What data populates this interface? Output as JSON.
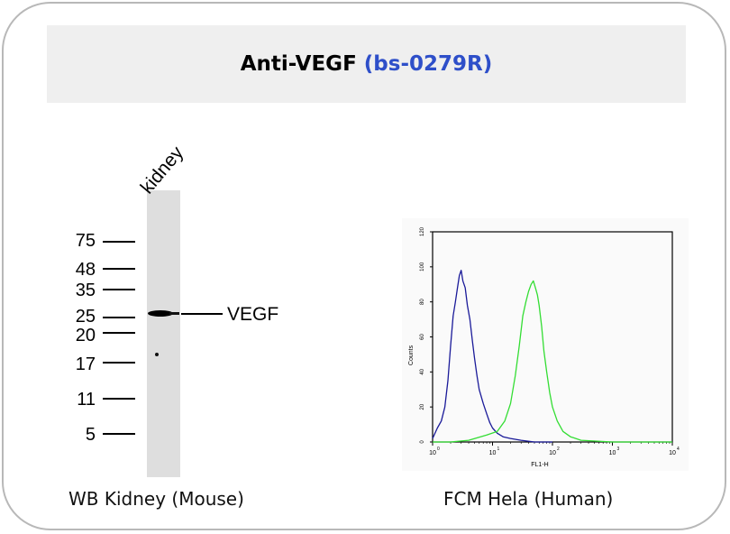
{
  "title": {
    "main": "Anti-VEGF",
    "code": "(bs-0279R)"
  },
  "colors": {
    "title_code": "#2e4fc9",
    "trace_blue": "#1a1a99",
    "trace_green": "#33dd33"
  },
  "western_blot": {
    "lane_label": "kidney",
    "markers": [
      "75",
      "48",
      "35",
      "25",
      "20",
      "17",
      "11",
      "5"
    ],
    "band_label": "VEGF",
    "caption": "WB Kidney (Mouse)"
  },
  "flow_cytometry": {
    "caption": "FCM Hela (Human)",
    "chart_data": {
      "type": "line",
      "xlabel": "FL1-H",
      "ylabel": "Counts",
      "xscale": "log",
      "xlim": [
        1,
        10000
      ],
      "ylim": [
        0,
        120
      ],
      "x_ticks": [
        "10",
        "10",
        "10",
        "10",
        "10"
      ],
      "x_tick_exponents": [
        "0",
        "1",
        "2",
        "3",
        "4"
      ],
      "y_ticks": [
        "0",
        "20",
        "40",
        "60",
        "80",
        "100",
        "120"
      ],
      "series": [
        {
          "color": "#1a1a99",
          "x": [
            1.0,
            1.2,
            1.4,
            1.6,
            1.8,
            2.0,
            2.2,
            2.4,
            2.6,
            2.8,
            3.0,
            3.2,
            3.5,
            3.8,
            4.2,
            4.6,
            5.0,
            5.5,
            6.0,
            7.0,
            8.0,
            9.0,
            10.0,
            12.0,
            15.0,
            20.0,
            30.0,
            50.0,
            100.0
          ],
          "y": [
            2,
            8,
            12,
            20,
            35,
            55,
            72,
            80,
            88,
            95,
            98,
            92,
            88,
            78,
            70,
            58,
            48,
            38,
            30,
            22,
            16,
            11,
            8,
            5,
            3,
            2,
            1,
            0,
            0
          ]
        },
        {
          "color": "#33dd33",
          "x": [
            1.0,
            2.0,
            4.0,
            8.0,
            12.0,
            16.0,
            20.0,
            24.0,
            28.0,
            32.0,
            36.0,
            40.0,
            44.0,
            48.0,
            52.0,
            56.0,
            60.0,
            66.0,
            72.0,
            80.0,
            90.0,
            100.0,
            120.0,
            150.0,
            200.0,
            300.0,
            1000.0,
            10000.0
          ],
          "y": [
            0,
            0,
            1,
            4,
            6,
            12,
            22,
            38,
            55,
            72,
            80,
            86,
            90,
            92,
            88,
            84,
            78,
            66,
            52,
            40,
            28,
            20,
            12,
            6,
            3,
            1,
            0,
            0
          ]
        }
      ]
    }
  }
}
